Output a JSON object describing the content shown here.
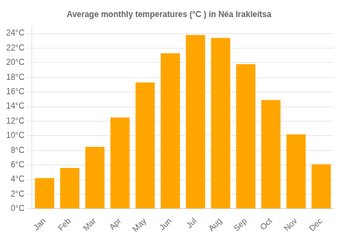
{
  "chart_data": {
    "type": "bar",
    "title": "Average monthly temperatures (°C ) in Néa Irakleítsa",
    "categories": [
      "Jan",
      "Feb",
      "Mar",
      "Apr",
      "May",
      "Jun",
      "Jul",
      "Aug",
      "Sep",
      "Oct",
      "Nov",
      "Dec"
    ],
    "values": [
      4.2,
      5.6,
      8.5,
      12.5,
      17.3,
      21.3,
      23.8,
      23.4,
      19.8,
      14.9,
      10.2,
      6.1
    ],
    "color": "#FFA500",
    "ylim": [
      0,
      25
    ],
    "yticks": [
      {
        "value": 0,
        "label": "0°C"
      },
      {
        "value": 2,
        "label": "2°C"
      },
      {
        "value": 4,
        "label": "4°C"
      },
      {
        "value": 6,
        "label": "6°C"
      },
      {
        "value": 8,
        "label": "8°C"
      },
      {
        "value": 10,
        "label": "10°C"
      },
      {
        "value": 12,
        "label": "12°C"
      },
      {
        "value": 14,
        "label": "14°C"
      },
      {
        "value": 16,
        "label": "16°C"
      },
      {
        "value": 18,
        "label": "18°C"
      },
      {
        "value": 20,
        "label": "20°C"
      },
      {
        "value": 22,
        "label": "22°C"
      },
      {
        "value": 24,
        "label": "24°C"
      }
    ],
    "grid": true
  }
}
